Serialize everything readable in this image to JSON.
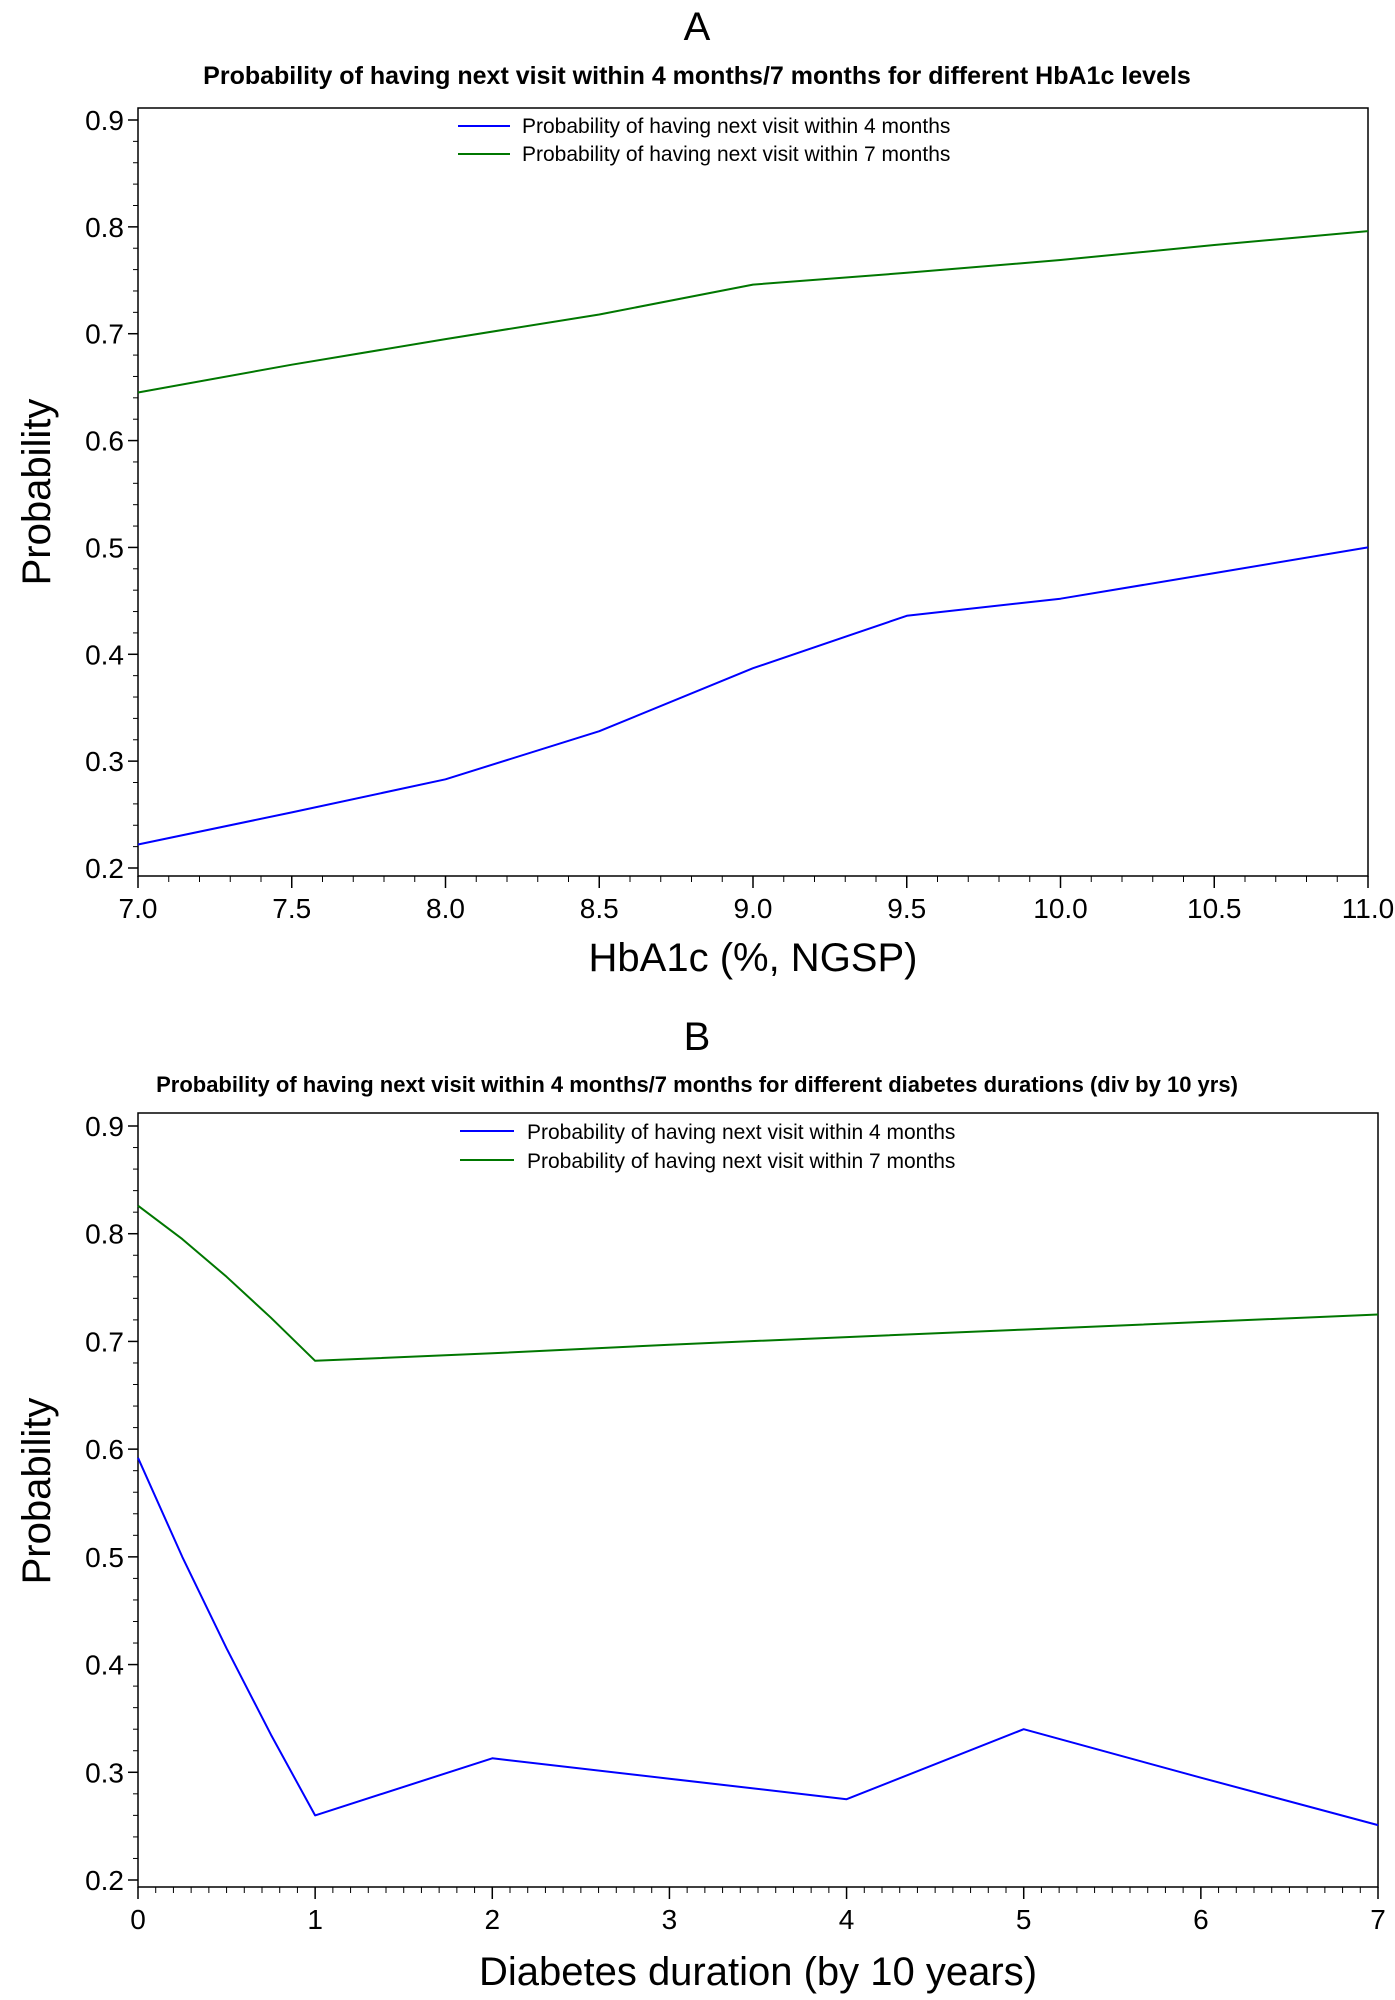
{
  "chart_data": [
    {
      "type": "line",
      "panel_label": "A",
      "title": "Probability of having next visit within 4 months/7 months for different HbA1c levels",
      "xlabel": "HbA1c (%, NGSP)",
      "ylabel": "Probability",
      "xlim": [
        7.0,
        11.0
      ],
      "ylim": [
        0.2,
        0.9
      ],
      "xticks": [
        "7.0",
        "7.5",
        "8.0",
        "8.5",
        "9.0",
        "9.5",
        "10.0",
        "10.5",
        "11.0"
      ],
      "yticks": [
        "0.2",
        "0.3",
        "0.4",
        "0.5",
        "0.6",
        "0.7",
        "0.8",
        "0.9"
      ],
      "legend_position": "top-center",
      "grid": false,
      "series": [
        {
          "name": "Probability of having next visit within 4 months",
          "color": "#0000ff",
          "x": [
            7.0,
            7.5,
            8.0,
            8.5,
            9.0,
            9.5,
            10.0,
            10.5,
            11.0
          ],
          "values": [
            0.222,
            0.252,
            0.283,
            0.328,
            0.387,
            0.436,
            0.452,
            0.476,
            0.5
          ]
        },
        {
          "name": "Probability of having next visit within 7 months",
          "color": "#007700",
          "x": [
            7.0,
            7.5,
            8.0,
            8.5,
            9.0,
            9.5,
            10.0,
            10.5,
            11.0
          ],
          "values": [
            0.645,
            0.671,
            0.695,
            0.718,
            0.746,
            0.757,
            0.769,
            0.783,
            0.796
          ]
        }
      ]
    },
    {
      "type": "line",
      "panel_label": "B",
      "title": "Probability of having next visit within 4 months/7 months for different diabetes durations (div by 10 yrs)",
      "xlabel": "Diabetes duration (by 10 years)",
      "ylabel": "Probability",
      "xlim": [
        0,
        7
      ],
      "ylim": [
        0.2,
        0.9
      ],
      "xticks": [
        "0",
        "1",
        "2",
        "3",
        "4",
        "5",
        "6",
        "7"
      ],
      "yticks": [
        "0.2",
        "0.3",
        "0.4",
        "0.5",
        "0.6",
        "0.7",
        "0.8",
        "0.9"
      ],
      "legend_position": "top-center",
      "grid": false,
      "series": [
        {
          "name": "Probability of having next visit within 4 months",
          "color": "#0000ff",
          "x": [
            0,
            0.25,
            0.5,
            0.75,
            1,
            2,
            3,
            4,
            5,
            6,
            7
          ],
          "values": [
            0.592,
            0.5,
            0.415,
            0.335,
            0.26,
            0.313,
            0.294,
            0.275,
            0.34,
            0.295,
            0.251
          ]
        },
        {
          "name": "Probability of having next visit within 7 months",
          "color": "#007700",
          "x": [
            0,
            0.25,
            0.5,
            0.75,
            1,
            2,
            3,
            4,
            5,
            6,
            7
          ],
          "values": [
            0.826,
            0.795,
            0.76,
            0.722,
            0.682,
            0.689,
            0.697,
            0.704,
            0.711,
            0.718,
            0.725
          ]
        }
      ]
    }
  ]
}
